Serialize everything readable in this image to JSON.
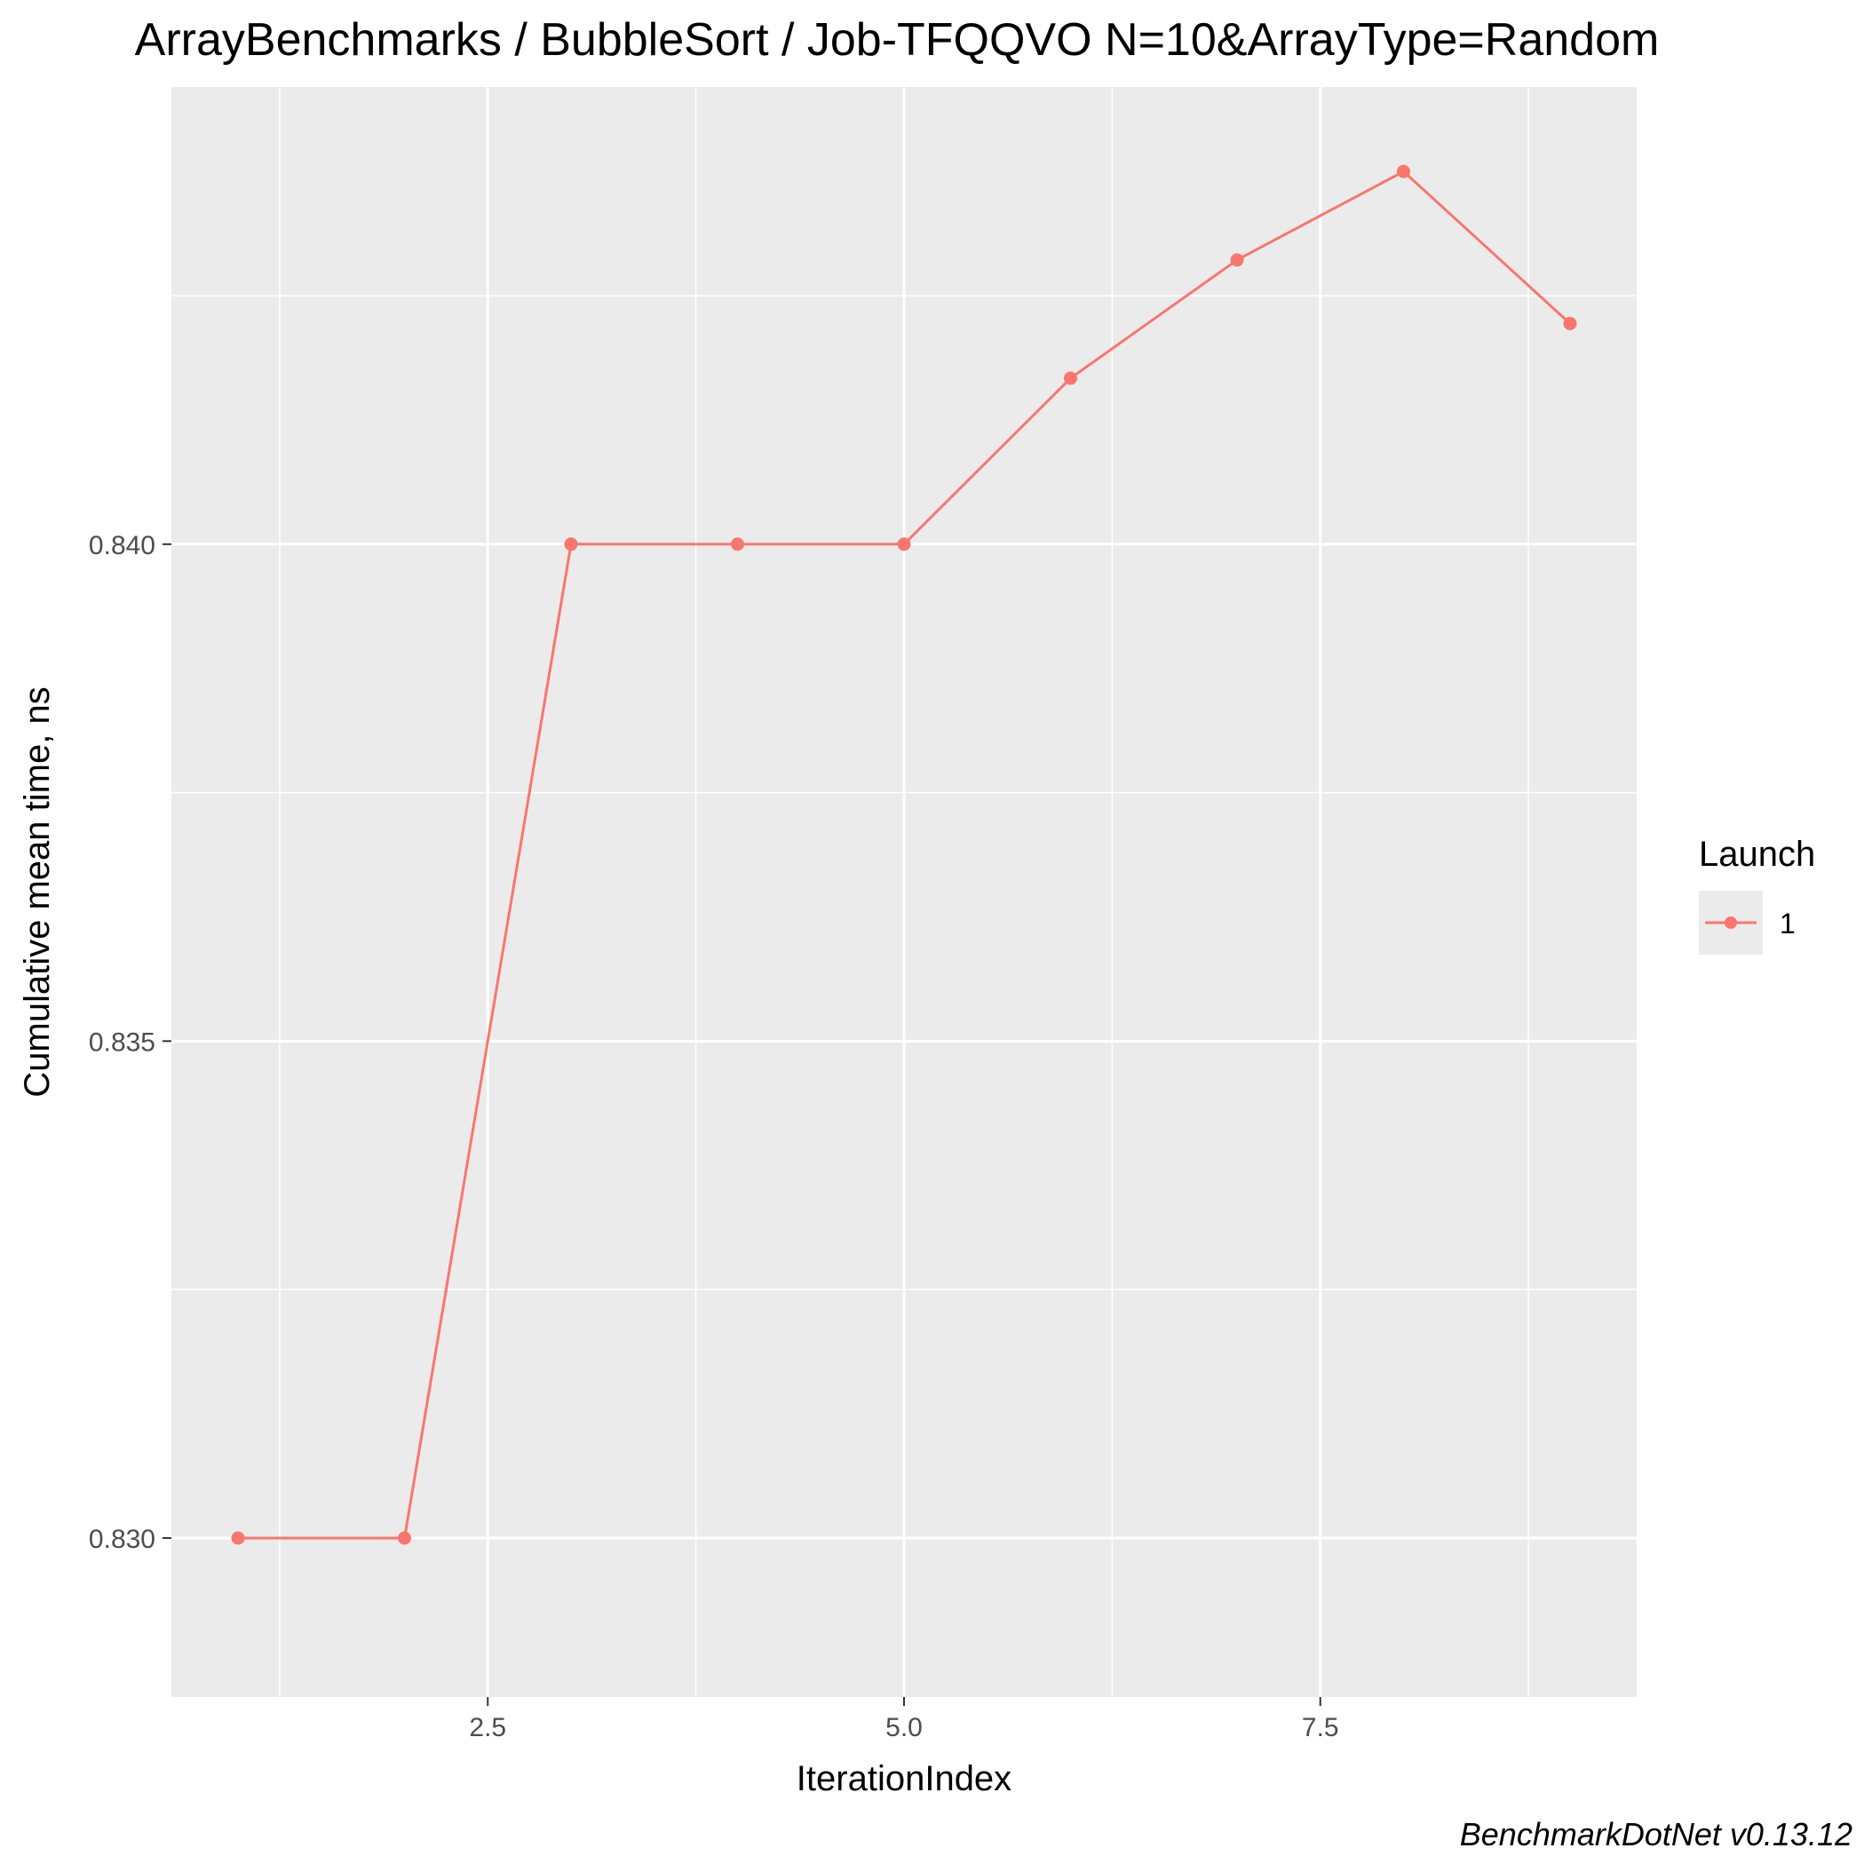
{
  "chart_data": {
    "type": "line",
    "title": "ArrayBenchmarks / BubbleSort / Job-TFQQVO N=10&ArrayType=Random",
    "xlabel": "IterationIndex",
    "ylabel": "Cumulative mean time, ns",
    "caption": "BenchmarkDotNet v0.13.12",
    "xlim": [
      0.6,
      9.4
    ],
    "ylim": [
      0.8284,
      0.8446
    ],
    "x_ticks": [
      2.5,
      5.0,
      7.5
    ],
    "x_tick_labels": [
      "2.5",
      "5.0",
      "7.5"
    ],
    "y_ticks": [
      0.83,
      0.835,
      0.84
    ],
    "y_tick_labels": [
      "0.830",
      "0.835",
      "0.840"
    ],
    "grid": true,
    "legend": {
      "title": "Launch",
      "position": "right"
    },
    "series": [
      {
        "name": "1",
        "color": "#F8766D",
        "x": [
          1,
          2,
          3,
          4,
          5,
          6,
          7,
          8,
          9
        ],
        "y": [
          0.83,
          0.83,
          0.84,
          0.84,
          0.84,
          0.84167,
          0.84286,
          0.84375,
          0.84222
        ]
      }
    ]
  }
}
